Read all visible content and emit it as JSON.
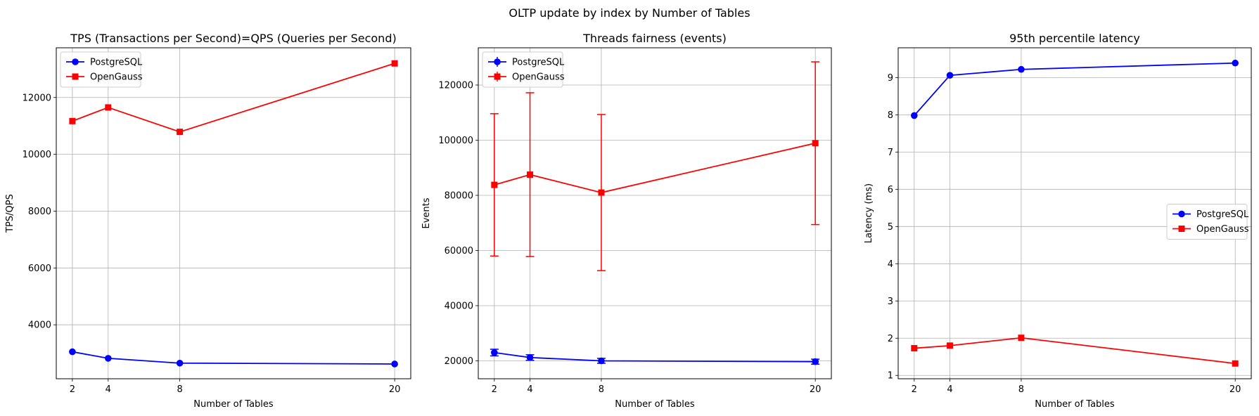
{
  "suptitle": "OLTP update by index by Number of Tables",
  "chart_data": [
    {
      "type": "line",
      "title": "TPS (Transactions per Second)=QPS (Queries per Second)",
      "xlabel": "Number of Tables",
      "ylabel": "TPS/QPS",
      "x": [
        2,
        4,
        8,
        20
      ],
      "xticks": [
        2,
        4,
        8,
        20
      ],
      "yticks": [
        4000,
        6000,
        8000,
        10000,
        12000
      ],
      "xlim": [
        1.1,
        20.9
      ],
      "ylim": [
        2100,
        13750
      ],
      "grid": true,
      "legend": "upper-left",
      "series": [
        {
          "name": "PostgreSQL",
          "color": "#0000ff",
          "marker": "circle",
          "values": [
            3050,
            2820,
            2650,
            2620
          ]
        },
        {
          "name": "OpenGauss",
          "color": "#ff0000",
          "marker": "square",
          "values": [
            11170,
            11650,
            10790,
            13200
          ]
        }
      ]
    },
    {
      "type": "line",
      "title": "Threads fairness (events)",
      "xlabel": "Number of Tables",
      "ylabel": "Events",
      "x": [
        2,
        4,
        8,
        20
      ],
      "xticks": [
        2,
        4,
        8,
        20
      ],
      "yticks": [
        20000,
        40000,
        60000,
        80000,
        100000,
        120000
      ],
      "xlim": [
        1.1,
        20.9
      ],
      "ylim": [
        13500,
        133500
      ],
      "grid": true,
      "legend": "upper-left",
      "errorbars": true,
      "series": [
        {
          "name": "PostgreSQL",
          "color": "#0000ff",
          "marker": "circle",
          "values": [
            23000,
            21200,
            20000,
            19700
          ],
          "errors": [
            1200,
            1000,
            900,
            900
          ]
        },
        {
          "name": "OpenGauss",
          "color": "#ff0000",
          "marker": "square",
          "values": [
            83800,
            87500,
            81000,
            98900
          ],
          "errors": [
            25800,
            29700,
            28300,
            29500
          ]
        }
      ]
    },
    {
      "type": "line",
      "title": "95th percentile latency",
      "xlabel": "Number of Tables",
      "ylabel": "Latency (ms)",
      "x": [
        2,
        4,
        8,
        20
      ],
      "xticks": [
        2,
        4,
        8,
        20
      ],
      "yticks": [
        1,
        2,
        3,
        4,
        5,
        6,
        7,
        8,
        9
      ],
      "xlim": [
        1.1,
        20.9
      ],
      "ylim": [
        0.91,
        9.8
      ],
      "grid": true,
      "legend": "center-right",
      "series": [
        {
          "name": "PostgreSQL",
          "color": "#0000ff",
          "marker": "circle",
          "values": [
            7.98,
            9.06,
            9.22,
            9.39
          ]
        },
        {
          "name": "OpenGauss",
          "color": "#ff0000",
          "marker": "square",
          "values": [
            1.73,
            1.8,
            2.01,
            1.32
          ]
        }
      ]
    }
  ]
}
